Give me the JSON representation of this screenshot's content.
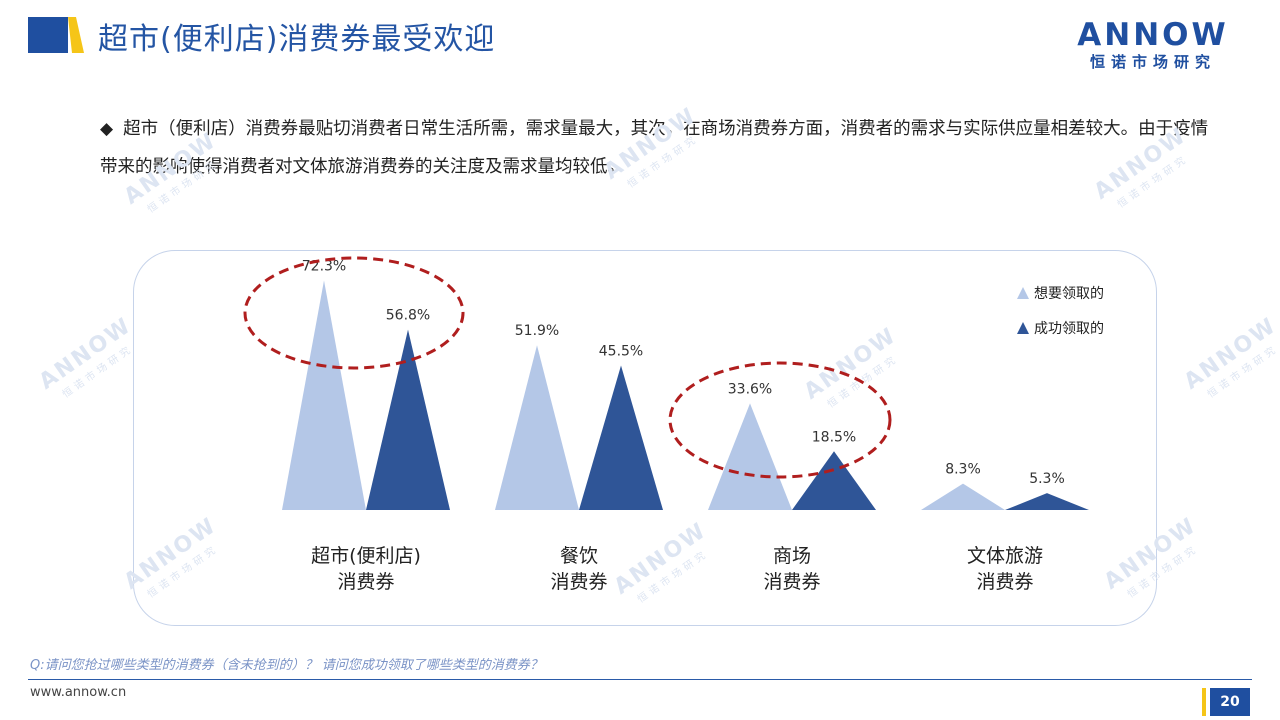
{
  "header": {
    "title": "超市(便利店)消费券最受欢迎",
    "brand_name": "ANNOW",
    "brand_sub": "恒诺市场研究"
  },
  "bullet": {
    "text": "超市（便利店）消费券最贴切消费者日常生活所需，需求量最大，其次，在商场消费券方面，消费者的需求与实际供应量相差较大。由于疫情带来的影响使得消费者对文体旅游消费券的关注度及需求量均较低。"
  },
  "chart_data": {
    "type": "bar",
    "categories": [
      [
        "超市(便利店)",
        "消费券"
      ],
      [
        "餐饮",
        "消费券"
      ],
      [
        "商场",
        "消费券"
      ],
      [
        "文体旅游",
        "消费券"
      ]
    ],
    "series": [
      {
        "name": "想要领取的",
        "values": [
          72.3,
          51.9,
          33.6,
          8.3
        ],
        "labels": [
          "72.3%",
          "51.9%",
          "33.6%",
          "8.3%"
        ],
        "color": "#b4c7e7"
      },
      {
        "name": "成功领取的",
        "values": [
          56.8,
          45.5,
          18.5,
          5.3
        ],
        "labels": [
          "56.8%",
          "45.5%",
          "18.5%",
          "5.3%"
        ],
        "color": "#2f5597"
      }
    ],
    "ylim": [
      0,
      80
    ],
    "legend_position": "top-right",
    "highlight_categories": [
      0,
      2
    ],
    "highlight_color": "#b01e1e"
  },
  "footer": {
    "question": "Q:请问您抢过哪些类型的消费券（含未抢到的）？ 请问您成功领取了哪些类型的消费券？",
    "website": "www.annow.cn",
    "page_number": "20"
  },
  "colors": {
    "accent_blue": "#2455a4",
    "accent_yellow": "#f5c518"
  },
  "icons": {
    "bullet": "black-diamond-icon"
  }
}
